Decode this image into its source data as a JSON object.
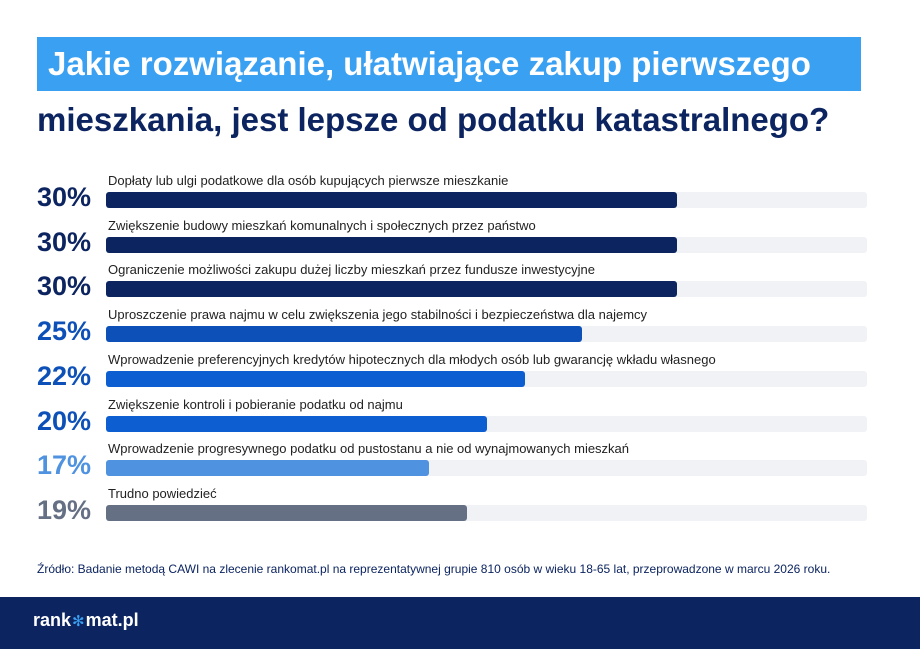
{
  "title": {
    "line1": "Jakie rozwiązanie, ułatwiające zakup pierwszego",
    "line2": "mieszkania, jest lepsze od podatku katastralnego?"
  },
  "chart_data": {
    "type": "bar",
    "orientation": "horizontal",
    "categories": [
      "Dopłaty lub ulgi podatkowe dla osób kupujących pierwsze mieszkanie",
      "Zwiększenie budowy mieszkań komunalnych i społecznych przez państwo",
      "Ograniczenie możliwości zakupu dużej liczby mieszkań przez fundusze inwestycyjne",
      "Uproszczenie prawa najmu w celu zwiększenia jego stabilności i bezpieczeństwa dla najemcy",
      "Wprowadzenie preferencyjnych kredytów hipotecznych dla młodych osób lub gwarancję wkładu własnego",
      "Zwiększenie kontroli i pobieranie podatku od najmu",
      "Wprowadzenie progresywnego podatku od pustostanu a nie od wynajmowanych mieszkań",
      "Trudno powiedzieć"
    ],
    "values": [
      30,
      30,
      30,
      25,
      22,
      20,
      17,
      19
    ],
    "value_labels": [
      "30%",
      "30%",
      "30%",
      "25%",
      "22%",
      "20%",
      "17%",
      "19%"
    ],
    "bar_colors": [
      "#0c2460",
      "#0c2460",
      "#0c2460",
      "#0d50b8",
      "#0d5fd1",
      "#0d5fd1",
      "#4f92e0",
      "#667085"
    ],
    "label_colors": [
      "#0c2460",
      "#0c2460",
      "#0c2460",
      "#0d50b8",
      "#0d50b8",
      "#0d50b8",
      "#4f92e0",
      "#667085"
    ],
    "xlim": [
      0,
      40
    ],
    "track_color": "#f1f2f6",
    "grid": false,
    "legend": "none"
  },
  "source": "Źródło: Badanie metodą CAWI na zlecenie rankomat.pl na reprezentatywnej grupie 810 osób w wieku 18-65 lat, przeprowadzone w marcu 2026 roku.",
  "footer": {
    "logo_left": "rank",
    "logo_mid": "✻",
    "logo_right": "mat.pl"
  },
  "colors": {
    "title_box": "#3aa0f2",
    "title_text": "#0c2460",
    "footer_bg": "#0c2460"
  }
}
